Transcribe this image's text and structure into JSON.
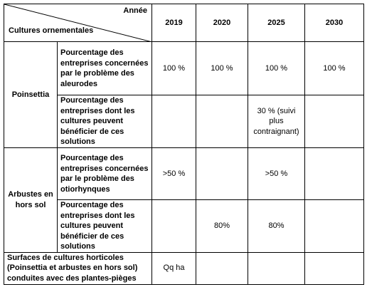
{
  "header": {
    "corner_top": "Année",
    "corner_bottom": "Cultures ornementales",
    "years": [
      "2019",
      "2020",
      "2025",
      "2030"
    ]
  },
  "groups": [
    {
      "label": "Poinsettia",
      "rows": [
        {
          "label": "Pourcentage des entreprises concernées par le problème des aleurodes",
          "cells": [
            "100 %",
            "100 %",
            "100 %",
            "100 %"
          ]
        },
        {
          "label": "Pourcentage des entreprises dont les cultures peuvent bénéficier de ces solutions",
          "cells": [
            null,
            null,
            "30 % (suivi plus contraignant)",
            null
          ]
        }
      ]
    },
    {
      "label": "Arbustes en hors sol",
      "rows": [
        {
          "label": "Pourcentage des entreprises concernées par le problème des otiorhynques",
          "cells": [
            ">50 %",
            null,
            ">50 %",
            null
          ]
        },
        {
          "label": "Pourcentage des entreprises dont les cultures peuvent bénéficier de ces solutions",
          "cells": [
            null,
            "80%",
            "80%",
            null
          ]
        }
      ]
    }
  ],
  "footer": {
    "label": "Surfaces de cultures horticoles (Poinsettia et arbustes en hors sol) conduites avec des plantes-pièges",
    "cells": [
      "Qq ha",
      null,
      null,
      null
    ]
  }
}
